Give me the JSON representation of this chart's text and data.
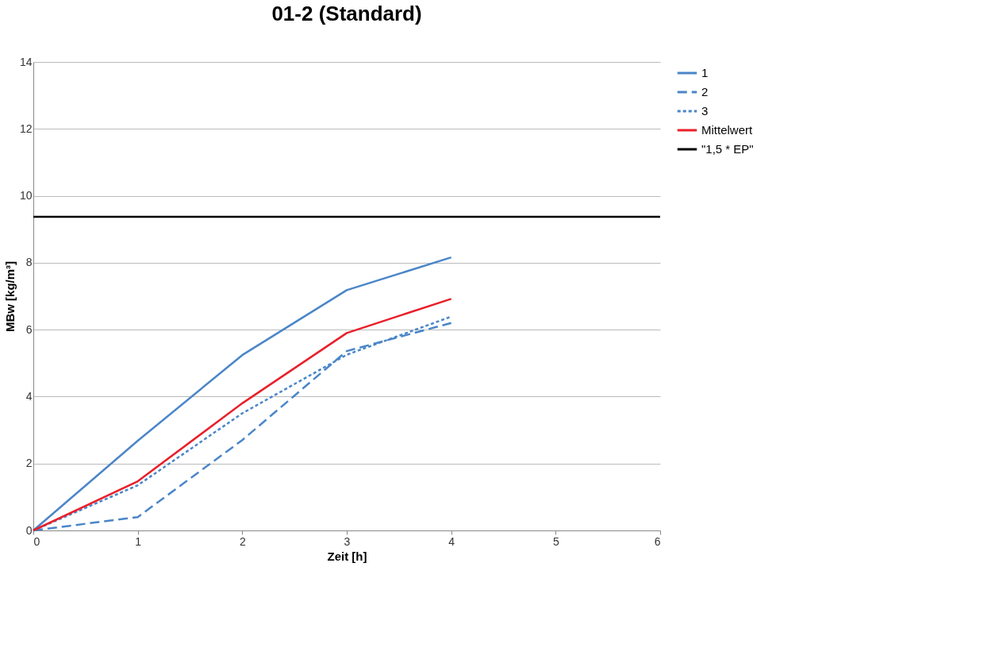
{
  "chart_data": {
    "type": "line",
    "title": "01-2 (Standard)",
    "xlabel": "Zeit [h]",
    "ylabel": "MBw [kg/m³]",
    "x": [
      0,
      1,
      2,
      3,
      4
    ],
    "series": [
      {
        "name": "1",
        "color": "#4a86c8",
        "line_style": "solid",
        "values": [
          0,
          2.68,
          5.24,
          7.18,
          8.16
        ]
      },
      {
        "name": "2",
        "color": "#4a86c8",
        "line_style": "dashed",
        "values": [
          0,
          0.4,
          2.7,
          5.36,
          6.2
        ]
      },
      {
        "name": "3",
        "color": "#4a86c8",
        "line_style": "dotted",
        "values": [
          0,
          1.35,
          3.5,
          5.25,
          6.39
        ]
      },
      {
        "name": "Mittelwert",
        "color": "#e8202a",
        "line_style": "solid",
        "values": [
          0,
          1.47,
          3.8,
          5.9,
          6.92
        ]
      },
      {
        "name": "\"1,5 * EP\"",
        "color": "#000000",
        "line_style": "solid",
        "x": [
          0,
          6
        ],
        "values": [
          9.37,
          9.37
        ]
      }
    ],
    "xlim": [
      0,
      6
    ],
    "xticks": [
      0,
      1,
      2,
      3,
      4,
      5,
      6
    ],
    "ylim": [
      0,
      14
    ],
    "yticks": [
      0,
      2,
      4,
      6,
      8,
      10,
      12,
      14
    ],
    "grid": "y",
    "legend": "right",
    "marker": "none"
  }
}
